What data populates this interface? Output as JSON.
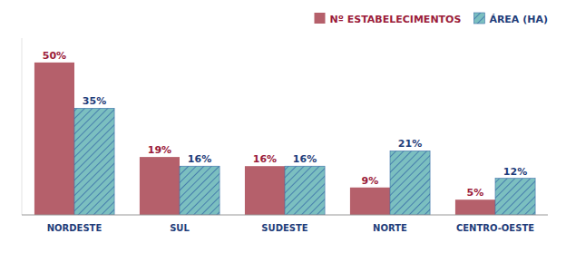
{
  "chart_data": {
    "type": "bar",
    "categories": [
      "NORDESTE",
      "SUL",
      "SUDESTE",
      "NORTE",
      "CENTRO-OESTE"
    ],
    "series": [
      {
        "name": "Nº ESTABELECIMENTOS",
        "color": "#b5606b",
        "values": [
          50,
          19,
          16,
          9,
          5
        ],
        "value_labels": [
          "50%",
          "19%",
          "16%",
          "9%",
          "5%"
        ]
      },
      {
        "name": "ÁREA (HA)",
        "color": "#7bbfc0",
        "values": [
          35,
          16,
          16,
          21,
          12
        ],
        "value_labels": [
          "35%",
          "16%",
          "16%",
          "21%",
          "12%"
        ]
      }
    ],
    "ylim": [
      0,
      58
    ],
    "data_labels": true,
    "legend": "upper right",
    "tick_labels": "x",
    "grid": false
  }
}
